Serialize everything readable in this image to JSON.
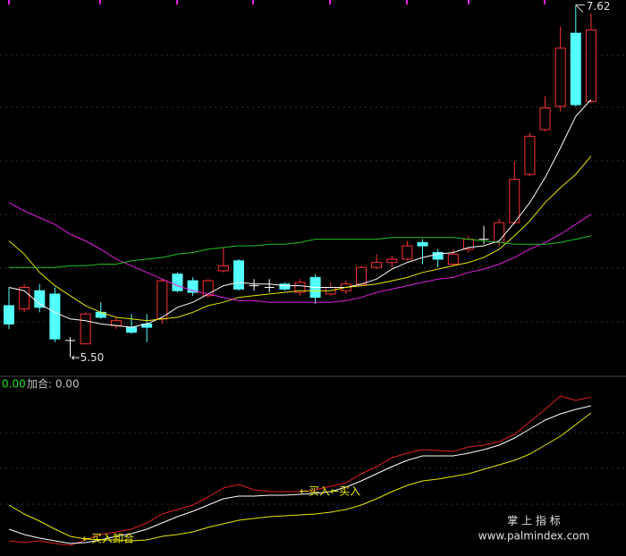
{
  "chart_data": [
    {
      "type": "candlestick",
      "up_color": "#ff3232",
      "down_color": "#54ffff",
      "flat_color": "#ffffff",
      "open": [
        5.81,
        5.79,
        5.9,
        5.88,
        5.6,
        5.58,
        5.77,
        5.69,
        5.68,
        5.7,
        5.73,
        6.0,
        5.96,
        5.87,
        6.02,
        6.08,
        5.93,
        5.92,
        5.94,
        5.89,
        5.98,
        5.88,
        5.9,
        5.94,
        6.04,
        6.07,
        6.09,
        6.19,
        6.13,
        6.06,
        6.15,
        6.21,
        6.19,
        6.31,
        6.6,
        6.87,
        7.01,
        7.45,
        7.04
      ],
      "high": [
        5.92,
        5.94,
        5.94,
        5.92,
        5.62,
        5.77,
        5.83,
        5.74,
        5.76,
        5.76,
        5.97,
        6.01,
        5.98,
        5.97,
        6.16,
        6.09,
        5.97,
        5.97,
        5.95,
        5.97,
        6.0,
        5.95,
        5.96,
        6.05,
        6.12,
        6.11,
        6.2,
        6.21,
        6.15,
        6.15,
        6.23,
        6.29,
        6.33,
        6.68,
        6.85,
        7.07,
        7.49,
        7.62,
        7.57
      ],
      "low": [
        5.67,
        5.77,
        5.77,
        5.59,
        5.5,
        5.58,
        5.73,
        5.67,
        5.64,
        5.59,
        5.7,
        5.89,
        5.87,
        5.86,
        6.01,
        5.9,
        5.9,
        5.89,
        5.9,
        5.87,
        5.82,
        5.87,
        5.88,
        5.93,
        6.03,
        6.04,
        6.08,
        6.06,
        6.04,
        6.05,
        6.13,
        6.18,
        6.17,
        6.3,
        6.59,
        6.86,
        6.98,
        7.01,
        7.03
      ],
      "close": [
        5.7,
        5.92,
        5.8,
        5.61,
        5.6,
        5.76,
        5.74,
        5.72,
        5.65,
        5.68,
        5.96,
        5.9,
        5.89,
        5.96,
        6.05,
        5.91,
        5.93,
        5.92,
        5.91,
        5.95,
        5.86,
        5.92,
        5.94,
        6.04,
        6.07,
        6.09,
        6.17,
        6.17,
        6.09,
        6.12,
        6.21,
        6.21,
        6.31,
        6.57,
        6.83,
        7.0,
        7.36,
        7.02,
        7.47
      ],
      "series": [
        {
          "color": "#ffffff",
          "values": [
            5.92,
            5.9,
            5.82,
            5.77,
            5.73,
            5.72,
            5.7,
            5.69,
            5.68,
            5.7,
            5.74,
            5.8,
            5.83,
            5.88,
            5.93,
            5.95,
            5.94,
            5.94,
            5.93,
            5.93,
            5.92,
            5.92,
            5.92,
            5.94,
            5.97,
            6.03,
            6.07,
            6.1,
            6.12,
            6.13,
            6.16,
            6.17,
            6.2,
            6.31,
            6.43,
            6.58,
            6.76,
            6.95,
            7.05
          ]
        },
        {
          "color": "#e8e800",
          "values": [
            6.2,
            6.12,
            6.01,
            5.93,
            5.87,
            5.81,
            5.77,
            5.74,
            5.73,
            5.72,
            5.73,
            5.74,
            5.77,
            5.81,
            5.83,
            5.86,
            5.87,
            5.88,
            5.89,
            5.9,
            5.9,
            5.9,
            5.92,
            5.93,
            5.94,
            5.96,
            5.98,
            6.01,
            6.03,
            6.05,
            6.07,
            6.1,
            6.15,
            6.23,
            6.32,
            6.43,
            6.52,
            6.6,
            6.71
          ]
        },
        {
          "color": "#e020e0",
          "values": [
            6.43,
            6.38,
            6.34,
            6.3,
            6.24,
            6.2,
            6.15,
            6.09,
            6.05,
            6.01,
            5.97,
            5.93,
            5.9,
            5.88,
            5.86,
            5.84,
            5.84,
            5.83,
            5.83,
            5.83,
            5.83,
            5.83,
            5.84,
            5.86,
            5.89,
            5.91,
            5.93,
            5.95,
            5.97,
            5.98,
            6.01,
            6.03,
            6.06,
            6.1,
            6.15,
            6.19,
            6.24,
            6.3,
            6.36
          ]
        },
        {
          "color": "#20c020",
          "values": [
            6.04,
            6.04,
            6.04,
            6.04,
            6.05,
            6.05,
            6.06,
            6.06,
            6.08,
            6.09,
            6.1,
            6.12,
            6.13,
            6.15,
            6.16,
            6.17,
            6.17,
            6.18,
            6.18,
            6.19,
            6.21,
            6.21,
            6.21,
            6.21,
            6.21,
            6.22,
            6.22,
            6.22,
            6.22,
            6.22,
            6.21,
            6.2,
            6.19,
            6.18,
            6.18,
            6.18,
            6.19,
            6.21,
            6.23
          ]
        }
      ],
      "ylim": [
        5.39,
        7.65
      ],
      "annotations": [
        "←5.50",
        "7.62"
      ]
    },
    {
      "type": "line",
      "header": [
        "0.00",
        "加合: 0.00"
      ],
      "series": [
        {
          "color": "#e02020",
          "values": [
            15,
            13,
            15,
            12,
            10,
            16,
            22,
            25,
            28,
            35,
            45,
            50,
            55,
            64,
            74,
            78,
            72,
            70,
            70,
            70,
            72,
            76,
            80,
            90,
            98,
            108,
            113,
            117,
            116,
            115,
            120,
            122,
            126,
            134,
            148,
            162,
            177,
            172,
            176
          ]
        },
        {
          "color": "#ffffff",
          "values": [
            28,
            22,
            18,
            15,
            12,
            13,
            16,
            20,
            23,
            28,
            35,
            42,
            48,
            55,
            62,
            65,
            65,
            66,
            66,
            67,
            68,
            70,
            75,
            82,
            90,
            98,
            105,
            110,
            110,
            110,
            113,
            117,
            122,
            130,
            140,
            150,
            157,
            162,
            166
          ]
        },
        {
          "color": "#e8e800",
          "values": [
            55,
            45,
            37,
            28,
            20,
            17,
            16,
            16,
            15,
            16,
            20,
            22,
            25,
            30,
            34,
            38,
            40,
            42,
            43,
            44,
            45,
            47,
            50,
            55,
            62,
            70,
            77,
            82,
            84,
            87,
            90,
            95,
            100,
            105,
            112,
            122,
            132,
            145,
            158
          ]
        }
      ],
      "ylim": [
        0,
        180
      ],
      "annotations": [
        "←买入←买入",
        "←买入卸合"
      ]
    }
  ],
  "watermark": {
    "title": "掌 上 指 标",
    "url": "www.palmindex.com"
  }
}
